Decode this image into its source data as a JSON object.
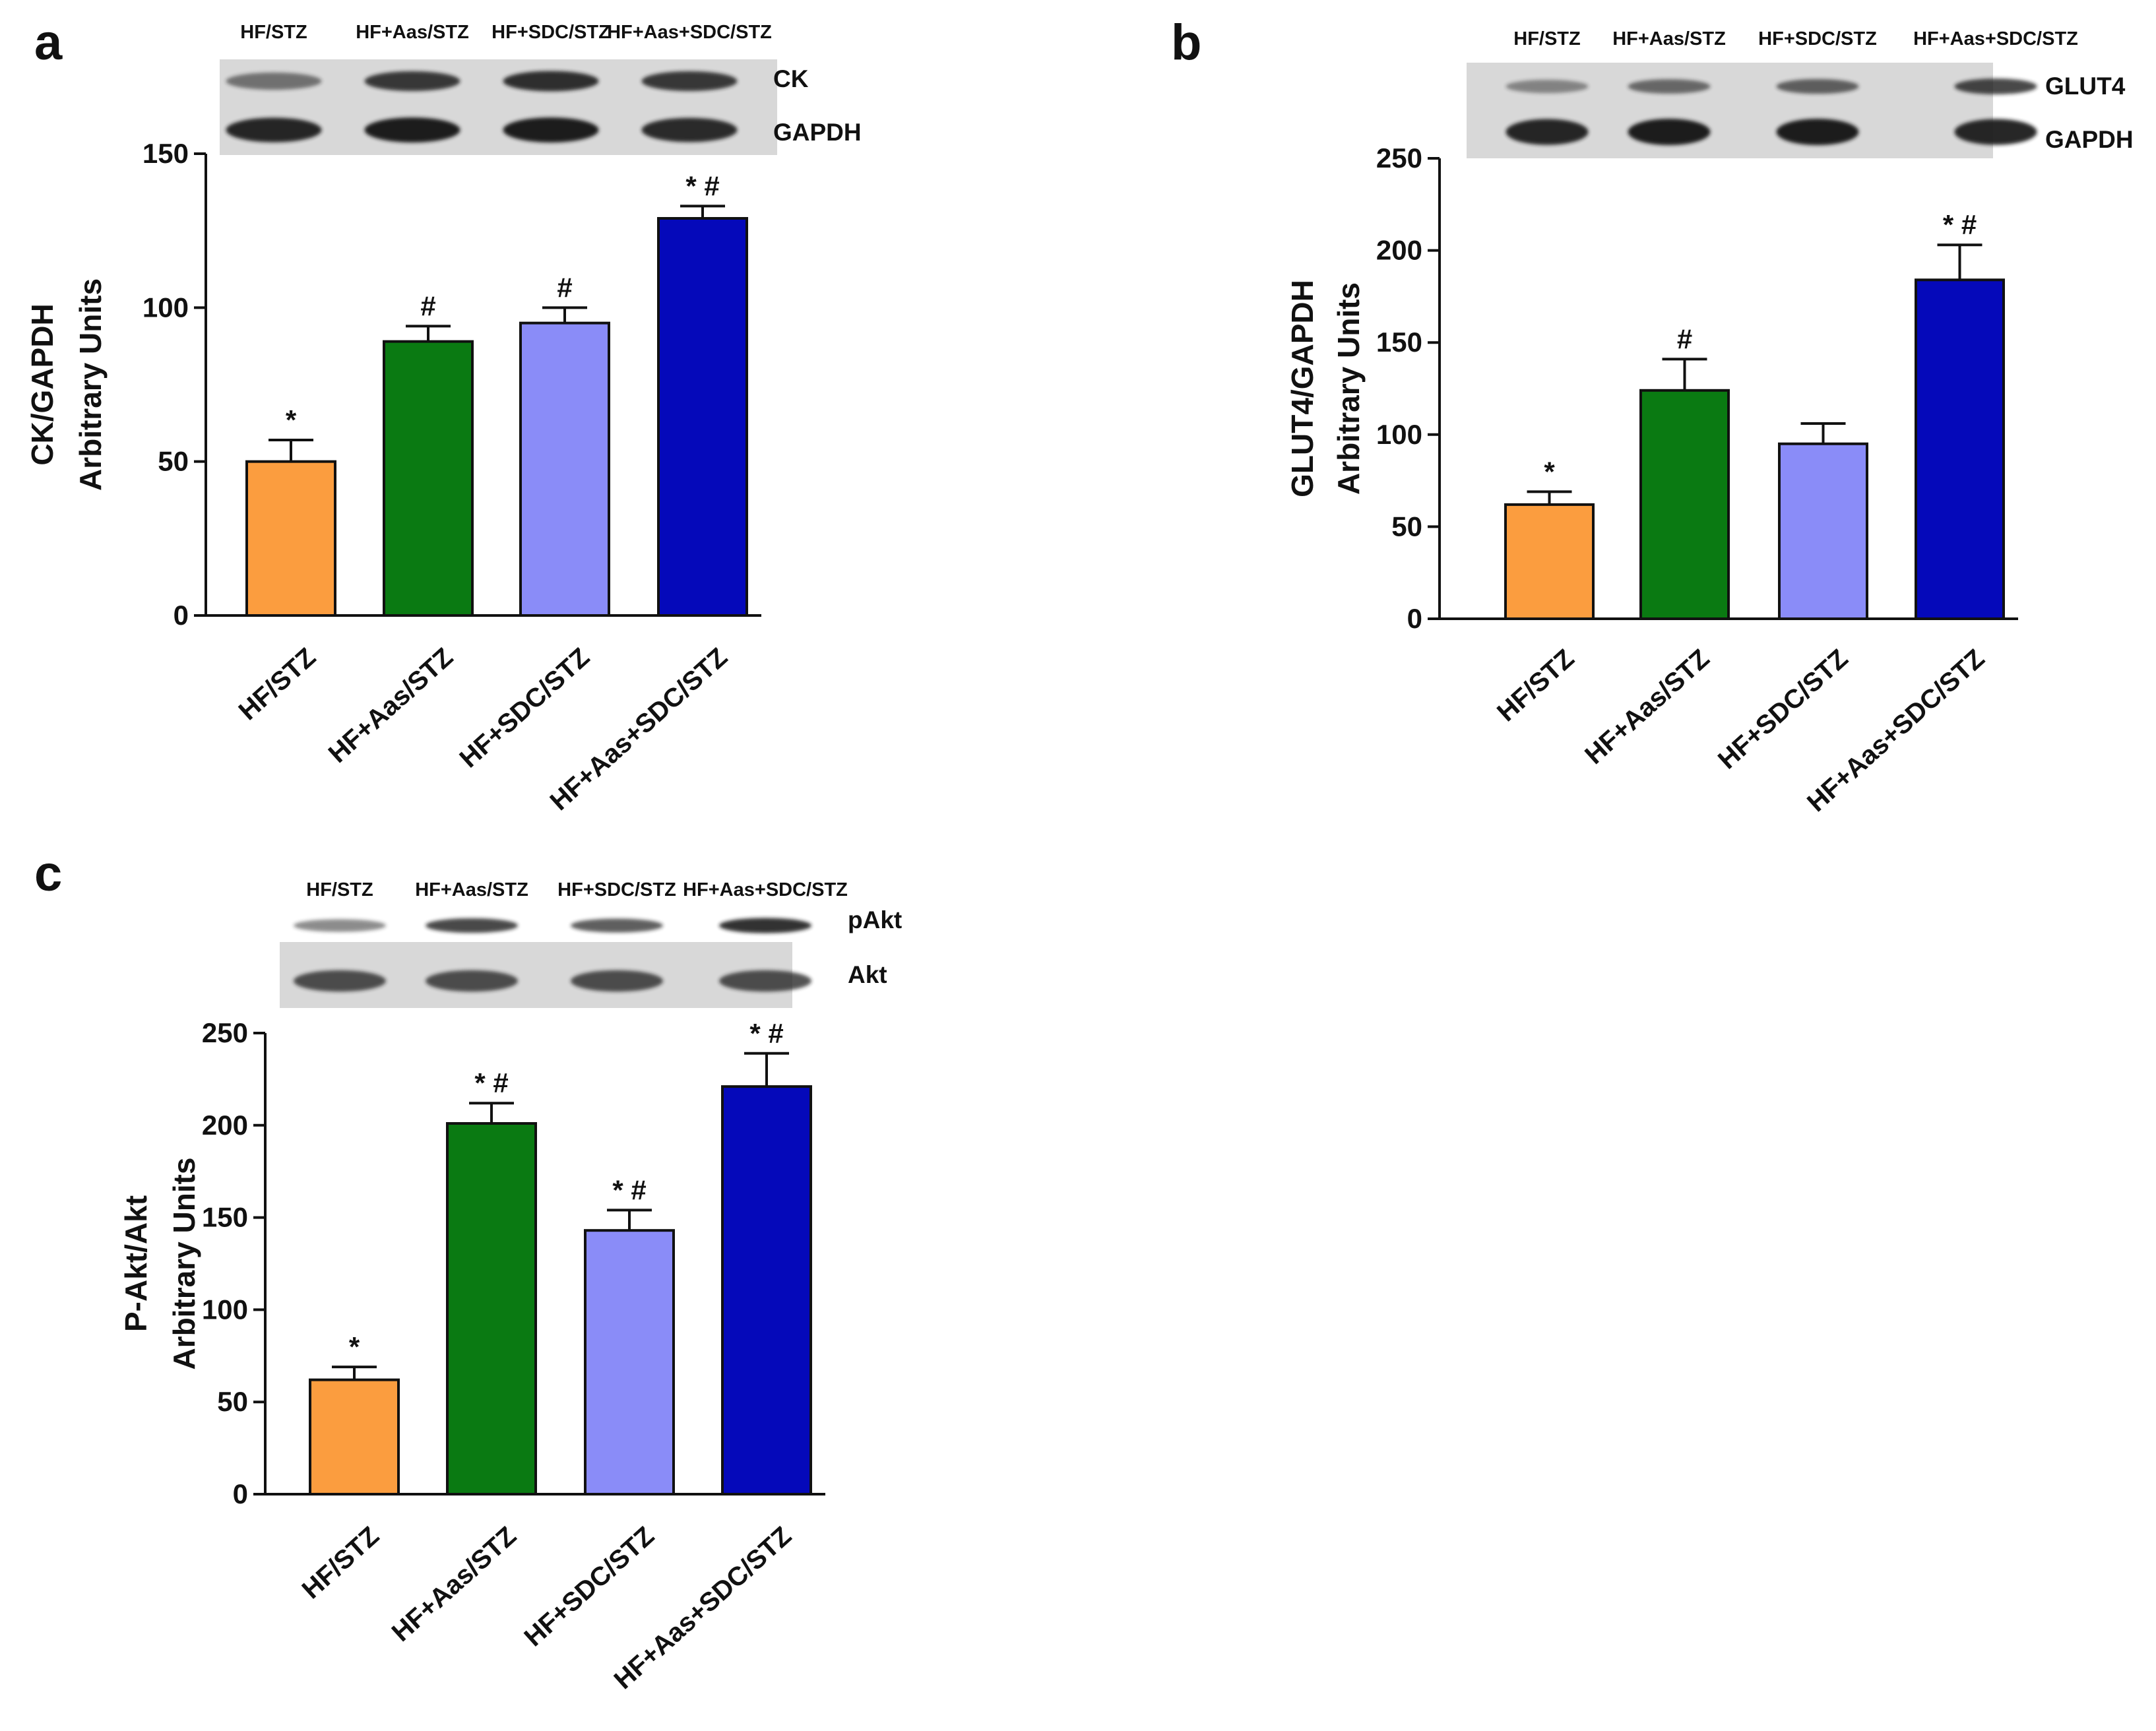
{
  "figure": {
    "panels": [
      {
        "letter": "a",
        "blot": {
          "lane_labels": [
            "HF/STZ",
            "HF+Aas/STZ",
            "HF+SDC/STZ",
            "HF+Aas+SDC/STZ"
          ],
          "row_labels": [
            "CK",
            "GAPDH"
          ],
          "band_intensity": [
            [
              0.55,
              0.85,
              0.9,
              0.85
            ],
            [
              0.95,
              1.0,
              1.0,
              0.92
            ]
          ]
        }
      },
      {
        "letter": "b",
        "blot": {
          "lane_labels": [
            "HF/STZ",
            "HF+Aas/STZ",
            "HF+SDC/STZ",
            "HF+Aas+SDC/STZ"
          ],
          "row_labels": [
            "GLUT4",
            "GAPDH"
          ],
          "band_intensity": [
            [
              0.45,
              0.6,
              0.65,
              0.8
            ],
            [
              0.95,
              1.0,
              1.0,
              0.95
            ]
          ]
        }
      },
      {
        "letter": "c",
        "blot": {
          "lane_labels": [
            "HF/STZ",
            "HF+Aas/STZ",
            "HF+SDC/STZ",
            "HF+Aas+SDC/STZ"
          ],
          "row_labels": [
            "pAkt",
            "Akt"
          ],
          "band_intensity": [
            [
              0.5,
              0.8,
              0.7,
              0.9
            ],
            [
              0.75,
              0.75,
              0.75,
              0.75
            ]
          ]
        }
      }
    ],
    "colors": {
      "bars": [
        "#fb9d3f",
        "#0a7a12",
        "#8a8cf8",
        "#0509ba"
      ],
      "axis": "#111111",
      "blot_bg": "#d8d8d8",
      "band": "#1a1a1a"
    }
  },
  "chart_data": [
    {
      "type": "bar",
      "panel": "a",
      "title": "",
      "xlabel": "",
      "ylabel": [
        "CK/GAPDH",
        "Arbitrary Units"
      ],
      "categories": [
        "HF/STZ",
        "HF+Aas/STZ",
        "HF+SDC/STZ",
        "HF+Aas+SDC/STZ"
      ],
      "values": [
        50,
        89,
        95,
        129
      ],
      "errors": [
        7,
        5,
        5,
        4
      ],
      "annotations": [
        "*",
        "#",
        "#",
        "* #"
      ],
      "ylim": [
        0,
        150
      ],
      "yticks": [
        0,
        50,
        100,
        150
      ],
      "grid": false
    },
    {
      "type": "bar",
      "panel": "b",
      "title": "",
      "xlabel": "",
      "ylabel": [
        "GLUT4/GAPDH",
        "Arbitrary Units"
      ],
      "categories": [
        "HF/STZ",
        "HF+Aas/STZ",
        "HF+SDC/STZ",
        "HF+Aas+SDC/STZ"
      ],
      "values": [
        62,
        124,
        95,
        184
      ],
      "errors": [
        7,
        17,
        11,
        19
      ],
      "annotations": [
        "*",
        "#",
        "",
        "* #"
      ],
      "ylim": [
        0,
        250
      ],
      "yticks": [
        0,
        50,
        100,
        150,
        200,
        250
      ],
      "grid": false
    },
    {
      "type": "bar",
      "panel": "c",
      "title": "",
      "xlabel": "",
      "ylabel": [
        "P-Akt/Akt",
        "Arbitrary Units"
      ],
      "categories": [
        "HF/STZ",
        "HF+Aas/STZ",
        "HF+SDC/STZ",
        "HF+Aas+SDC/STZ"
      ],
      "values": [
        62,
        201,
        143,
        221
      ],
      "errors": [
        7,
        11,
        11,
        18
      ],
      "annotations": [
        "*",
        "* #",
        "* #",
        "* #"
      ],
      "ylim": [
        0,
        250
      ],
      "yticks": [
        0,
        50,
        100,
        150,
        200,
        250
      ],
      "grid": false
    }
  ]
}
